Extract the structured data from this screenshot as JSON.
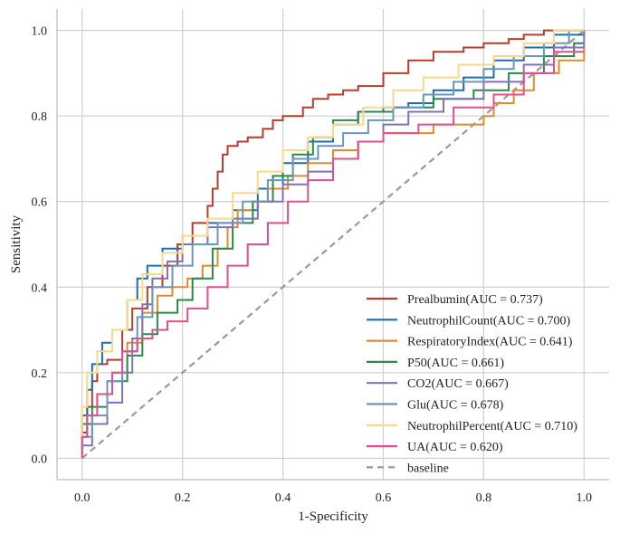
{
  "chart_data": {
    "type": "line",
    "xlabel": "1-Specificity",
    "ylabel": "Sensitivity",
    "xlim": [
      -0.05,
      1.05
    ],
    "ylim": [
      -0.05,
      1.05
    ],
    "xticks": [
      "0.0",
      "0.2",
      "0.4",
      "0.6",
      "0.8",
      "1.0"
    ],
    "yticks": [
      "0.0",
      "0.2",
      "0.4",
      "0.6",
      "0.8",
      "1.0"
    ],
    "grid": true,
    "legend_position": "lower-right",
    "series": [
      {
        "name": "Prealbumin(AUC = 0.737)",
        "color": "#b73c2c",
        "x": [
          0,
          0,
          0.01,
          0.01,
          0.02,
          0.02,
          0.03,
          0.03,
          0.05,
          0.05,
          0.08,
          0.08,
          0.1,
          0.1,
          0.13,
          0.13,
          0.16,
          0.16,
          0.19,
          0.19,
          0.22,
          0.22,
          0.25,
          0.25,
          0.26,
          0.26,
          0.27,
          0.27,
          0.28,
          0.28,
          0.29,
          0.29,
          0.31,
          0.31,
          0.33,
          0.33,
          0.36,
          0.36,
          0.38,
          0.38,
          0.4,
          0.4,
          0.44,
          0.44,
          0.46,
          0.46,
          0.49,
          0.49,
          0.52,
          0.52,
          0.55,
          0.55,
          0.6,
          0.6,
          0.65,
          0.65,
          0.7,
          0.7,
          0.76,
          0.76,
          0.8,
          0.8,
          0.85,
          0.85,
          0.88,
          0.88,
          0.92,
          0.92,
          1.0,
          1.0
        ],
        "y": [
          0,
          0.06,
          0.06,
          0.12,
          0.12,
          0.18,
          0.18,
          0.22,
          0.22,
          0.23,
          0.23,
          0.3,
          0.3,
          0.35,
          0.35,
          0.4,
          0.4,
          0.45,
          0.45,
          0.5,
          0.5,
          0.55,
          0.55,
          0.59,
          0.59,
          0.63,
          0.63,
          0.67,
          0.67,
          0.71,
          0.71,
          0.73,
          0.73,
          0.74,
          0.74,
          0.75,
          0.75,
          0.77,
          0.77,
          0.79,
          0.79,
          0.8,
          0.8,
          0.82,
          0.82,
          0.84,
          0.84,
          0.85,
          0.85,
          0.86,
          0.86,
          0.87,
          0.87,
          0.9,
          0.9,
          0.93,
          0.93,
          0.95,
          0.95,
          0.96,
          0.96,
          0.97,
          0.97,
          0.98,
          0.98,
          0.99,
          0.99,
          1.0,
          1.0,
          1.0
        ]
      },
      {
        "name": "NeutrophilCount(AUC = 0.700)",
        "color": "#1f6db0",
        "x": [
          0,
          0,
          0.01,
          0.01,
          0.02,
          0.02,
          0.04,
          0.04,
          0.06,
          0.06,
          0.09,
          0.09,
          0.11,
          0.11,
          0.13,
          0.13,
          0.16,
          0.16,
          0.2,
          0.2,
          0.25,
          0.25,
          0.3,
          0.3,
          0.35,
          0.35,
          0.4,
          0.4,
          0.45,
          0.45,
          0.5,
          0.5,
          0.55,
          0.55,
          0.6,
          0.6,
          0.65,
          0.65,
          0.7,
          0.7,
          0.76,
          0.76,
          0.82,
          0.82,
          0.88,
          0.88,
          0.94,
          0.94,
          1.0,
          1.0
        ],
        "y": [
          0,
          0.1,
          0.1,
          0.16,
          0.16,
          0.22,
          0.22,
          0.27,
          0.27,
          0.3,
          0.3,
          0.37,
          0.37,
          0.42,
          0.42,
          0.45,
          0.45,
          0.49,
          0.49,
          0.52,
          0.52,
          0.55,
          0.55,
          0.58,
          0.58,
          0.63,
          0.63,
          0.69,
          0.69,
          0.74,
          0.74,
          0.78,
          0.78,
          0.81,
          0.81,
          0.82,
          0.82,
          0.83,
          0.83,
          0.86,
          0.86,
          0.89,
          0.89,
          0.93,
          0.93,
          0.96,
          0.96,
          0.99,
          0.99,
          1.0
        ]
      },
      {
        "name": "RespiratoryIndex(AUC = 0.641)",
        "color": "#e08b2d",
        "x": [
          0,
          0,
          0.01,
          0.01,
          0.03,
          0.03,
          0.06,
          0.06,
          0.09,
          0.09,
          0.12,
          0.12,
          0.15,
          0.15,
          0.18,
          0.18,
          0.21,
          0.21,
          0.24,
          0.24,
          0.27,
          0.27,
          0.29,
          0.29,
          0.31,
          0.31,
          0.34,
          0.34,
          0.37,
          0.37,
          0.41,
          0.41,
          0.45,
          0.45,
          0.5,
          0.5,
          0.55,
          0.55,
          0.6,
          0.6,
          0.7,
          0.7,
          0.8,
          0.8,
          0.82,
          0.82,
          0.86,
          0.86,
          0.9,
          0.9,
          0.95,
          0.95,
          1.0,
          1.0
        ],
        "y": [
          0,
          0.05,
          0.05,
          0.1,
          0.1,
          0.15,
          0.15,
          0.2,
          0.2,
          0.27,
          0.27,
          0.34,
          0.34,
          0.38,
          0.38,
          0.4,
          0.4,
          0.42,
          0.42,
          0.45,
          0.45,
          0.49,
          0.49,
          0.54,
          0.54,
          0.58,
          0.58,
          0.6,
          0.6,
          0.63,
          0.63,
          0.66,
          0.66,
          0.69,
          0.69,
          0.72,
          0.72,
          0.74,
          0.74,
          0.76,
          0.76,
          0.78,
          0.78,
          0.8,
          0.8,
          0.83,
          0.83,
          0.86,
          0.86,
          0.9,
          0.9,
          0.93,
          0.93,
          0.96
        ]
      },
      {
        "name": "P50(AUC = 0.661)",
        "color": "#2a8a4a",
        "x": [
          0,
          0,
          0.02,
          0.02,
          0.05,
          0.05,
          0.09,
          0.09,
          0.12,
          0.12,
          0.15,
          0.15,
          0.19,
          0.19,
          0.22,
          0.22,
          0.26,
          0.26,
          0.3,
          0.3,
          0.34,
          0.34,
          0.38,
          0.38,
          0.42,
          0.42,
          0.46,
          0.46,
          0.5,
          0.5,
          0.55,
          0.55,
          0.62,
          0.62,
          0.7,
          0.7,
          0.78,
          0.78,
          0.85,
          0.85,
          0.92,
          0.92,
          0.98,
          0.98,
          1.0
        ],
        "y": [
          0,
          0.08,
          0.08,
          0.12,
          0.12,
          0.18,
          0.18,
          0.24,
          0.24,
          0.29,
          0.29,
          0.34,
          0.34,
          0.37,
          0.37,
          0.42,
          0.42,
          0.49,
          0.49,
          0.55,
          0.55,
          0.6,
          0.6,
          0.66,
          0.66,
          0.71,
          0.71,
          0.75,
          0.75,
          0.79,
          0.79,
          0.81,
          0.81,
          0.82,
          0.82,
          0.84,
          0.84,
          0.86,
          0.86,
          0.9,
          0.9,
          0.94,
          0.94,
          0.97,
          0.97
        ]
      },
      {
        "name": "CO2(AUC = 0.667)",
        "color": "#8072b8",
        "x": [
          0,
          0,
          0.02,
          0.02,
          0.05,
          0.05,
          0.08,
          0.08,
          0.1,
          0.1,
          0.12,
          0.12,
          0.14,
          0.14,
          0.17,
          0.17,
          0.2,
          0.2,
          0.25,
          0.25,
          0.3,
          0.3,
          0.35,
          0.35,
          0.4,
          0.4,
          0.45,
          0.45,
          0.5,
          0.5,
          0.55,
          0.55,
          0.6,
          0.6,
          0.65,
          0.65,
          0.72,
          0.72,
          0.8,
          0.8,
          0.88,
          0.88,
          0.94,
          0.94,
          1.0,
          1.0
        ],
        "y": [
          0,
          0.03,
          0.03,
          0.08,
          0.08,
          0.13,
          0.13,
          0.2,
          0.2,
          0.28,
          0.28,
          0.36,
          0.36,
          0.42,
          0.42,
          0.46,
          0.46,
          0.5,
          0.5,
          0.54,
          0.54,
          0.56,
          0.56,
          0.6,
          0.6,
          0.64,
          0.64,
          0.67,
          0.67,
          0.7,
          0.7,
          0.74,
          0.74,
          0.78,
          0.78,
          0.81,
          0.81,
          0.84,
          0.84,
          0.88,
          0.88,
          0.92,
          0.92,
          0.96,
          0.96,
          1.0
        ]
      },
      {
        "name": "Glu(AUC = 0.678)",
        "color": "#6a98b8",
        "x": [
          0,
          0,
          0.02,
          0.02,
          0.05,
          0.05,
          0.08,
          0.08,
          0.11,
          0.11,
          0.14,
          0.14,
          0.18,
          0.18,
          0.22,
          0.22,
          0.27,
          0.27,
          0.32,
          0.32,
          0.37,
          0.37,
          0.42,
          0.42,
          0.47,
          0.47,
          0.52,
          0.52,
          0.57,
          0.57,
          0.62,
          0.62,
          0.68,
          0.68,
          0.74,
          0.74,
          0.8,
          0.8,
          0.86,
          0.86,
          0.92,
          0.92,
          0.97,
          0.97,
          1.0
        ],
        "y": [
          0,
          0.05,
          0.05,
          0.1,
          0.1,
          0.18,
          0.18,
          0.25,
          0.25,
          0.33,
          0.33,
          0.4,
          0.4,
          0.45,
          0.45,
          0.5,
          0.5,
          0.55,
          0.55,
          0.6,
          0.6,
          0.65,
          0.65,
          0.7,
          0.7,
          0.73,
          0.73,
          0.76,
          0.76,
          0.79,
          0.79,
          0.82,
          0.82,
          0.85,
          0.85,
          0.88,
          0.88,
          0.91,
          0.91,
          0.94,
          0.94,
          0.97,
          0.97,
          1.0,
          1.0
        ]
      },
      {
        "name": "NeutrophilPercent(AUC = 0.710)",
        "color": "#f9d888",
        "x": [
          0,
          0,
          0.01,
          0.01,
          0.03,
          0.03,
          0.06,
          0.06,
          0.09,
          0.09,
          0.12,
          0.12,
          0.16,
          0.16,
          0.2,
          0.2,
          0.25,
          0.25,
          0.3,
          0.3,
          0.35,
          0.35,
          0.4,
          0.4,
          0.45,
          0.45,
          0.5,
          0.5,
          0.56,
          0.56,
          0.62,
          0.62,
          0.68,
          0.68,
          0.75,
          0.75,
          0.82,
          0.82,
          0.88,
          0.88,
          0.94,
          0.94,
          1.0
        ],
        "y": [
          0,
          0.12,
          0.12,
          0.2,
          0.2,
          0.25,
          0.25,
          0.3,
          0.3,
          0.37,
          0.37,
          0.43,
          0.43,
          0.48,
          0.48,
          0.52,
          0.52,
          0.56,
          0.56,
          0.62,
          0.62,
          0.67,
          0.67,
          0.72,
          0.72,
          0.75,
          0.75,
          0.78,
          0.78,
          0.82,
          0.82,
          0.86,
          0.86,
          0.89,
          0.89,
          0.92,
          0.92,
          0.94,
          0.94,
          0.97,
          0.97,
          1.0,
          1.0
        ]
      },
      {
        "name": "UA(AUC = 0.620)",
        "color": "#e04f8e",
        "x": [
          0,
          0,
          0.01,
          0.01,
          0.03,
          0.03,
          0.06,
          0.06,
          0.08,
          0.08,
          0.11,
          0.11,
          0.14,
          0.14,
          0.17,
          0.17,
          0.21,
          0.21,
          0.25,
          0.25,
          0.29,
          0.29,
          0.33,
          0.33,
          0.37,
          0.37,
          0.41,
          0.41,
          0.45,
          0.45,
          0.5,
          0.5,
          0.55,
          0.55,
          0.6,
          0.6,
          0.67,
          0.67,
          0.74,
          0.74,
          0.82,
          0.82,
          0.88,
          0.88,
          0.94,
          0.94,
          1.0
        ],
        "y": [
          0,
          0.05,
          0.05,
          0.1,
          0.1,
          0.15,
          0.15,
          0.2,
          0.2,
          0.25,
          0.25,
          0.28,
          0.28,
          0.3,
          0.3,
          0.32,
          0.32,
          0.35,
          0.35,
          0.4,
          0.4,
          0.45,
          0.45,
          0.5,
          0.5,
          0.55,
          0.55,
          0.6,
          0.6,
          0.65,
          0.65,
          0.7,
          0.7,
          0.74,
          0.74,
          0.76,
          0.76,
          0.78,
          0.78,
          0.82,
          0.82,
          0.85,
          0.85,
          0.9,
          0.9,
          0.95,
          0.95
        ]
      }
    ],
    "baseline": {
      "name": "baseline",
      "color": "#999999",
      "x": [
        0,
        1
      ],
      "y": [
        0,
        1
      ]
    }
  }
}
